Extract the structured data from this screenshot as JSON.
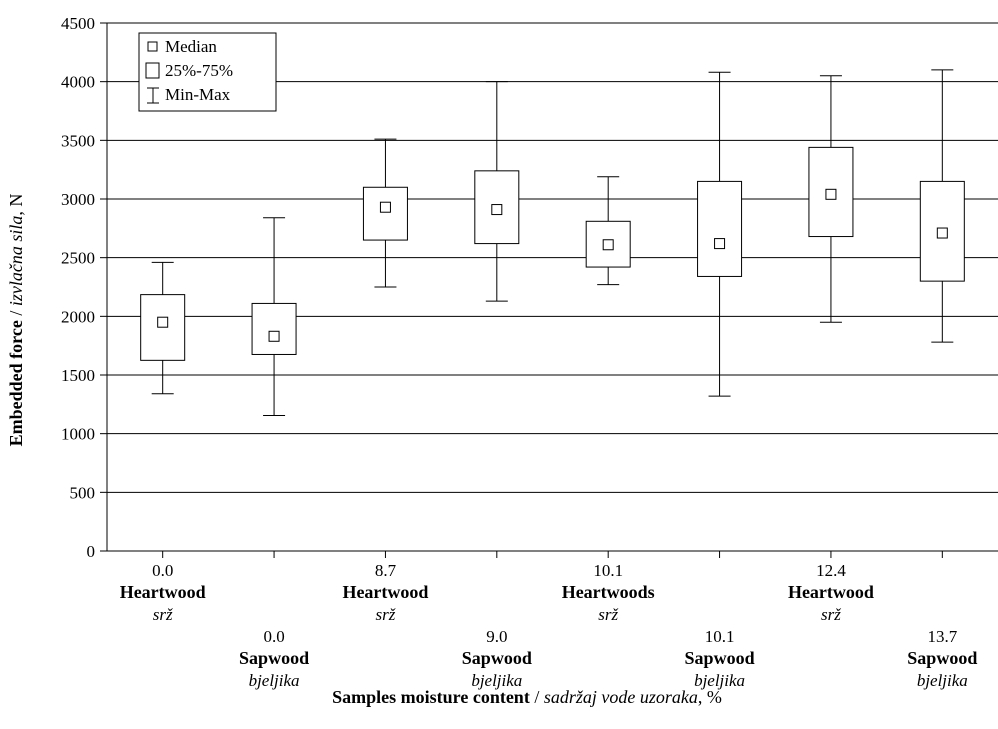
{
  "chart_data": {
    "type": "box",
    "ylabel_bold": "Embedded force",
    "ylabel_sep": " / ",
    "ylabel_italic": "izvlačna sila",
    "ylabel_unit": ", N",
    "xlabel_bold": "Samples moisture content",
    "xlabel_sep": " / ",
    "xlabel_italic": "sadržaj vode uzoraka",
    "xlabel_unit": ", %",
    "ylim": [
      0,
      4500
    ],
    "yticks": [
      0,
      500,
      1000,
      1500,
      2000,
      2500,
      3000,
      3500,
      4000,
      4500
    ],
    "ytick_labels": [
      "0",
      "500",
      "1000",
      "1500",
      "2000",
      "2500",
      "3000",
      "3500",
      "4000",
      "4500"
    ],
    "grid": true,
    "legend": {
      "placement": "top-left",
      "items": [
        {
          "symbol": "median",
          "label": "Median"
        },
        {
          "symbol": "box",
          "label": "25%-75%"
        },
        {
          "symbol": "whisker",
          "label": "Min-Max"
        }
      ]
    },
    "groups": [
      {
        "moisture": "0.0",
        "wood": "Heartwood",
        "wood_hr": "srž",
        "row": 1,
        "min": 1340,
        "q1": 1625,
        "median": 1950,
        "q3": 2185,
        "max": 2460
      },
      {
        "moisture": "0.0",
        "wood": "Sapwood",
        "wood_hr": "bjeljika",
        "row": 2,
        "min": 1155,
        "q1": 1675,
        "median": 1830,
        "q3": 2110,
        "max": 2840
      },
      {
        "moisture": "8.7",
        "wood": "Heartwood",
        "wood_hr": "srž",
        "row": 1,
        "min": 2250,
        "q1": 2650,
        "median": 2930,
        "q3": 3100,
        "max": 3510
      },
      {
        "moisture": "9.0",
        "wood": "Sapwood",
        "wood_hr": "bjeljika",
        "row": 2,
        "min": 2130,
        "q1": 2620,
        "median": 2910,
        "q3": 3240,
        "max": 4000
      },
      {
        "moisture": "10.1",
        "wood": "Heartwoods",
        "wood_hr": "srž",
        "row": 1,
        "min": 2270,
        "q1": 2420,
        "median": 2610,
        "q3": 2810,
        "max": 3190
      },
      {
        "moisture": "10.1",
        "wood": "Sapwood",
        "wood_hr": "bjeljika",
        "row": 2,
        "min": 1320,
        "q1": 2340,
        "median": 2620,
        "q3": 3150,
        "max": 4080
      },
      {
        "moisture": "12.4",
        "wood": "Heartwood",
        "wood_hr": "srž",
        "row": 1,
        "min": 1950,
        "q1": 2680,
        "median": 3040,
        "q3": 3440,
        "max": 4050
      },
      {
        "moisture": "13.7",
        "wood": "Sapwood",
        "wood_hr": "bjeljika",
        "row": 2,
        "min": 1780,
        "q1": 2300,
        "median": 2710,
        "q3": 3150,
        "max": 4100
      }
    ]
  }
}
